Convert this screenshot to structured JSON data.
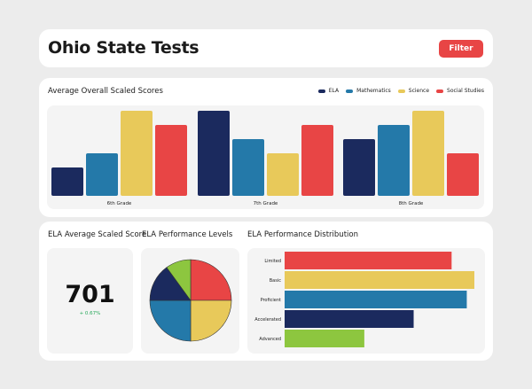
{
  "header": {
    "title": "Ohio State Tests",
    "filter_label": "Filter"
  },
  "colors": {
    "ela": "#1b2a5e",
    "math": "#2479a9",
    "science": "#e8c95a",
    "social": "#e84545",
    "green": "#8dc63f",
    "filter_button": "#e84545",
    "change_positive": "#27a85a"
  },
  "bar_section": {
    "title": "Average Overall Scaled Scores"
  },
  "score_section": {
    "title": "ELA Average Scaled Score",
    "value": "701",
    "change": "+ 0.67%"
  },
  "levels_section": {
    "title": "ELA Performance Levels"
  },
  "dist_section": {
    "title": "ELA Performance Distribution"
  },
  "chart_data": [
    {
      "type": "bar",
      "title": "Average Overall Scaled Scores",
      "categories": [
        "6th Grade",
        "7th Grade",
        "8th Grade"
      ],
      "series": [
        {
          "name": "ELA",
          "color": "#1b2a5e",
          "values": [
            20,
            60,
            40
          ]
        },
        {
          "name": "Mathematics",
          "color": "#2479a9",
          "values": [
            30,
            40,
            50
          ]
        },
        {
          "name": "Science",
          "color": "#e8c95a",
          "values": [
            60,
            30,
            60
          ]
        },
        {
          "name": "Social Studies",
          "color": "#e84545",
          "values": [
            50,
            50,
            30
          ]
        }
      ],
      "ylim": [
        0,
        60
      ],
      "legend": "top-right",
      "grid": false
    },
    {
      "type": "pie",
      "title": "ELA Performance Levels",
      "slices": [
        {
          "value": 25,
          "color": "#e84545"
        },
        {
          "value": 25,
          "color": "#e8c95a"
        },
        {
          "value": 25,
          "color": "#2479a9"
        },
        {
          "value": 15,
          "color": "#1b2a5e"
        },
        {
          "value": 10,
          "color": "#8dc63f"
        }
      ]
    },
    {
      "type": "bar",
      "orientation": "horizontal",
      "title": "ELA Performance Distribution",
      "categories": [
        "Limited",
        "Basic",
        "Proficient",
        "Accelerated",
        "Advanced"
      ],
      "values": [
        88,
        100,
        96,
        68,
        42
      ],
      "colors": [
        "#e84545",
        "#e8c95a",
        "#2479a9",
        "#1b2a5e",
        "#8dc63f"
      ],
      "xlim": [
        0,
        100
      ]
    }
  ]
}
